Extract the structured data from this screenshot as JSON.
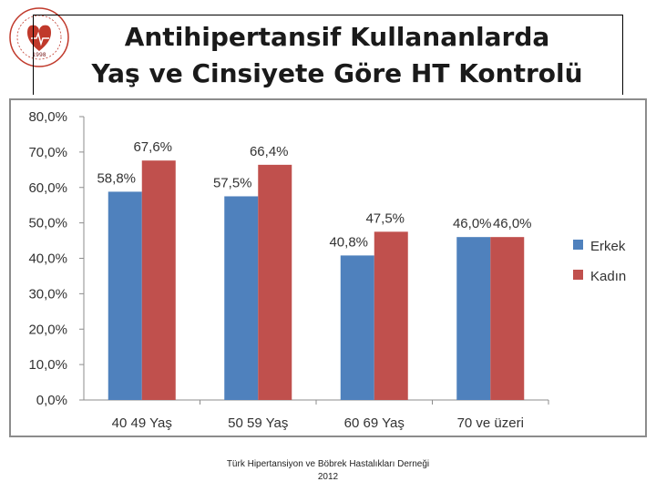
{
  "header": {
    "title_line1": "Antihipertansif Kullananlarda",
    "title_line2": "Yaş ve Cinsiyete Göre HT Kontrolü"
  },
  "logo": {
    "year": "1998"
  },
  "footer": {
    "line1": "Türk Hipertansiyon ve Böbrek Hastalıkları Derneği",
    "line2": "2012"
  },
  "colors": {
    "erkek": "#4f81bd",
    "kadin": "#c0504d",
    "axis": "#8c8c8c",
    "text": "#333333"
  },
  "chart_data": {
    "type": "bar",
    "categories": [
      "40 49 Yaş",
      "50 59 Yaş",
      "60 69 Yaş",
      "70 ve üzeri"
    ],
    "series": [
      {
        "name": "Erkek",
        "values": [
          58.8,
          57.5,
          40.8,
          46.0
        ],
        "labels": [
          "58,8%",
          "57,5%",
          "40,8%",
          "46,0%"
        ]
      },
      {
        "name": "Kadın",
        "values": [
          67.6,
          66.4,
          47.5,
          46.0
        ],
        "labels": [
          "67,6%",
          "66,4%",
          "47,5%",
          "46,0%"
        ]
      }
    ],
    "y_ticks": [
      "0,0%",
      "10,0%",
      "20,0%",
      "30,0%",
      "40,0%",
      "50,0%",
      "60,0%",
      "70,0%",
      "80,0%"
    ],
    "ylim": [
      0,
      80
    ],
    "grid": false,
    "legend": "right"
  }
}
